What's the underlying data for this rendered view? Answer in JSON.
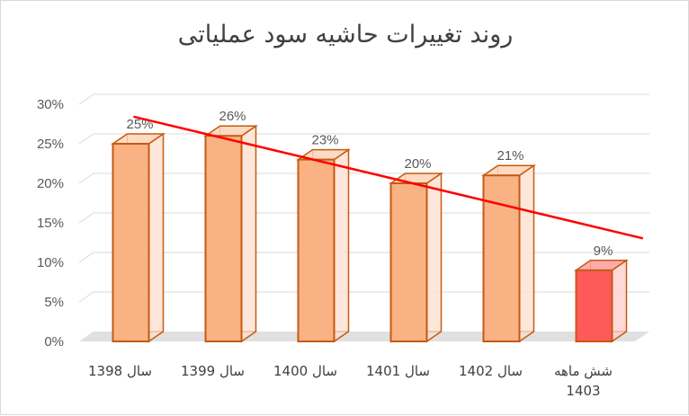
{
  "chart_data": {
    "type": "bar",
    "title": "روند تغییرات حاشیه سود عملیاتی",
    "categories": [
      "سال 1398",
      "سال 1399",
      "سال 1400",
      "سال 1401",
      "سال 1402",
      "شش ماهه 1403"
    ],
    "category_lines": [
      [
        "سال 1398"
      ],
      [
        "سال 1399"
      ],
      [
        "سال 1400"
      ],
      [
        "سال 1401"
      ],
      [
        "سال 1402"
      ],
      [
        "شش ماهه",
        "1403"
      ]
    ],
    "values": [
      25,
      26,
      23,
      20,
      21,
      9
    ],
    "data_labels": [
      "25%",
      "26%",
      "23%",
      "20%",
      "21%",
      "9%"
    ],
    "yticks": [
      "0%",
      "5%",
      "10%",
      "15%",
      "20%",
      "25%",
      "30%"
    ],
    "ylim": [
      0,
      30
    ],
    "trendline": {
      "type": "linear",
      "color": "#ff0000"
    },
    "bar_color": "#f9b284",
    "bar_edge_color": "#c55a11",
    "highlight_bar_color": "#ff5a5a",
    "highlight_index": 5,
    "grid": true,
    "style": "3d-column"
  }
}
